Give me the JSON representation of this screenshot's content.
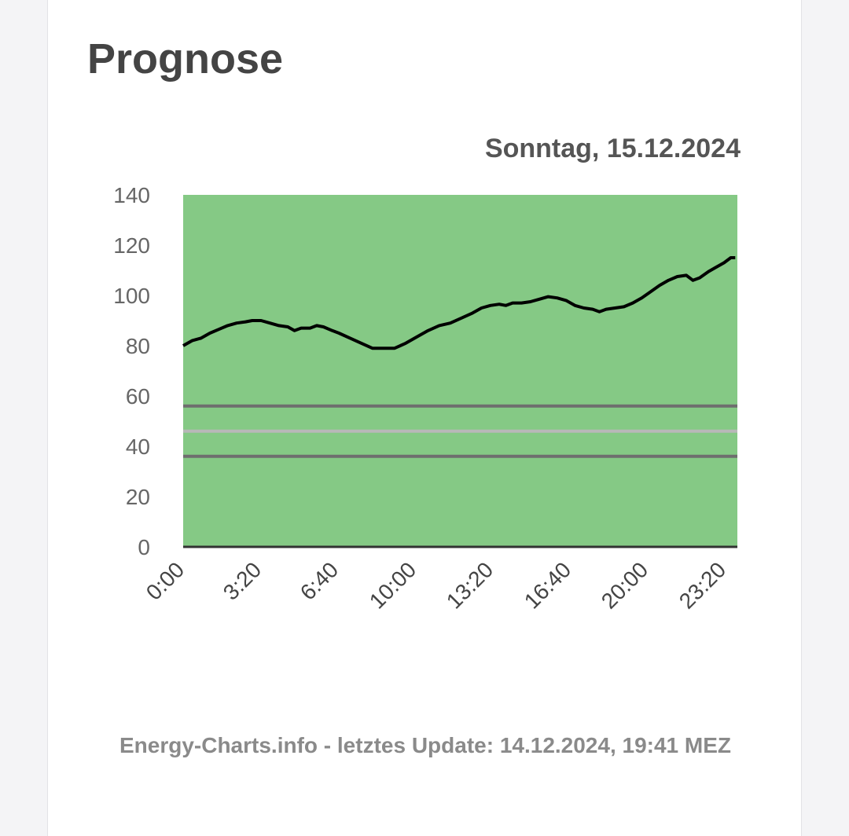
{
  "card": {
    "title": "Prognose",
    "footer": "Energy-Charts.info - letztes Update: 14.12.2024, 19:41 MEZ"
  },
  "chart_data": {
    "type": "line",
    "title": "Sonntag, 15.12.2024",
    "xlabel": "",
    "ylabel": "",
    "ylim": [
      0,
      140
    ],
    "xlim_hours": [
      0,
      24
    ],
    "yticks": [
      "0",
      "20",
      "40",
      "60",
      "80",
      "100",
      "120",
      "140"
    ],
    "xticks": [
      {
        "label": "0:00",
        "hour": 0
      },
      {
        "label": "3:20",
        "hour": 3.333
      },
      {
        "label": "6:40",
        "hour": 6.667
      },
      {
        "label": "10:00",
        "hour": 10
      },
      {
        "label": "13:20",
        "hour": 13.333
      },
      {
        "label": "16:40",
        "hour": 16.667
      },
      {
        "label": "20:00",
        "hour": 20
      },
      {
        "label": "23:20",
        "hour": 23.333
      }
    ],
    "background_color": "#85c985",
    "series": [
      {
        "color": "#000000",
        "points": [
          [
            0,
            80
          ],
          [
            0.4,
            82
          ],
          [
            0.8,
            83
          ],
          [
            1.2,
            85
          ],
          [
            1.6,
            86.5
          ],
          [
            2.0,
            88
          ],
          [
            2.4,
            89
          ],
          [
            2.8,
            89.5
          ],
          [
            3.1,
            90
          ],
          [
            3.5,
            90
          ],
          [
            3.9,
            89
          ],
          [
            4.3,
            88
          ],
          [
            4.7,
            87.5
          ],
          [
            5.0,
            86
          ],
          [
            5.3,
            87
          ],
          [
            5.7,
            87
          ],
          [
            6.0,
            88
          ],
          [
            6.3,
            87.5
          ],
          [
            6.7,
            86
          ],
          [
            7.0,
            85
          ],
          [
            7.5,
            83
          ],
          [
            8.0,
            81
          ],
          [
            8.5,
            79
          ],
          [
            9.0,
            79
          ],
          [
            9.5,
            79
          ],
          [
            10.0,
            81
          ],
          [
            10.5,
            83.5
          ],
          [
            11.0,
            86
          ],
          [
            11.5,
            88
          ],
          [
            12.0,
            89
          ],
          [
            12.5,
            91
          ],
          [
            13.0,
            93
          ],
          [
            13.4,
            95
          ],
          [
            13.8,
            96
          ],
          [
            14.2,
            96.5
          ],
          [
            14.5,
            96
          ],
          [
            14.8,
            97
          ],
          [
            15.2,
            97
          ],
          [
            15.6,
            97.5
          ],
          [
            16.0,
            98.5
          ],
          [
            16.4,
            99.5
          ],
          [
            16.8,
            99
          ],
          [
            17.2,
            98
          ],
          [
            17.6,
            96
          ],
          [
            18.0,
            95
          ],
          [
            18.4,
            94.5
          ],
          [
            18.7,
            93.5
          ],
          [
            19.0,
            94.5
          ],
          [
            19.4,
            95
          ],
          [
            19.8,
            95.5
          ],
          [
            20.2,
            97
          ],
          [
            20.6,
            99
          ],
          [
            21.0,
            101.5
          ],
          [
            21.4,
            104
          ],
          [
            21.8,
            106
          ],
          [
            22.2,
            107.5
          ],
          [
            22.6,
            108
          ],
          [
            22.9,
            106
          ],
          [
            23.2,
            107
          ],
          [
            23.6,
            109.5
          ],
          [
            23.9,
            111
          ],
          [
            24.3,
            113
          ],
          [
            24.6,
            115
          ],
          [
            24.8,
            115
          ]
        ]
      }
    ],
    "reference_lines": [
      {
        "y": 56,
        "color": "#6e6e6e"
      },
      {
        "y": 46,
        "color": "#b8b8b8"
      },
      {
        "y": 36,
        "color": "#6e6e6e"
      }
    ]
  }
}
